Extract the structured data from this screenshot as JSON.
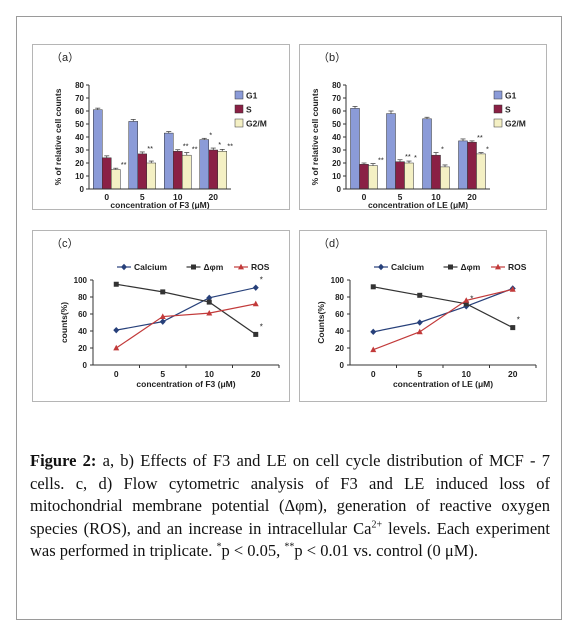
{
  "figure": {
    "caption": {
      "label": "Figure 2:",
      "part1": " a, b) Effects of F3 and LE on cell cycle distribution of MCF - 7 cells. c, d) Flow cytometric analysis of F3 and LE induced loss of mitochondrial membrane potential (Δφm), generation of reactive oxygen species (ROS), and an increase in intracellular Ca",
      "ca_sup": "2+",
      "part2": " levels. Each experiment was performed in triplicate. ",
      "p1_sup": "*",
      "part3": "p < 0.05, ",
      "p2_sup": "**",
      "part4": "p < 0.01 vs. control (0 μM)."
    }
  },
  "chart_data": [
    {
      "id": "a",
      "panel_label": "（a）",
      "type": "bar",
      "categories": [
        "0",
        "5",
        "10",
        "20"
      ],
      "xlabel": "concentration of F3 (μM)",
      "ylabel": "% of relative cell counts",
      "ylim": [
        0,
        80
      ],
      "yticks": [
        "0",
        "10",
        "20",
        "30",
        "40",
        "50",
        "60",
        "70",
        "80"
      ],
      "legend_position": "top-right",
      "series": [
        {
          "name": "G1",
          "color": "#8b9bd8",
          "values": [
            61,
            52,
            43,
            38
          ],
          "errors": [
            1.2,
            1.5,
            1.2,
            1
          ],
          "marks": [
            "",
            "",
            "",
            "*"
          ]
        },
        {
          "name": "S",
          "color": "#8a2045",
          "values": [
            24,
            27,
            29,
            30
          ],
          "errors": [
            1.5,
            1.5,
            1.2,
            1.5
          ],
          "marks": [
            "",
            "**",
            "**",
            "*"
          ]
        },
        {
          "name": "G2/M",
          "color": "#f4f0c4",
          "values": [
            15,
            20,
            26,
            29
          ],
          "errors": [
            1,
            1.5,
            2,
            1.5
          ],
          "marks": [
            "**",
            "",
            "**",
            "**"
          ]
        }
      ]
    },
    {
      "id": "b",
      "panel_label": "（b）",
      "type": "bar",
      "categories": [
        "0",
        "5",
        "10",
        "20"
      ],
      "xlabel": "concentration of LE (μM)",
      "ylabel": "% of relative cell counts",
      "ylim": [
        0,
        80
      ],
      "yticks": [
        "0",
        "10",
        "20",
        "30",
        "40",
        "50",
        "60",
        "70",
        "80"
      ],
      "legend_position": "top-right",
      "series": [
        {
          "name": "G1",
          "color": "#8b9bd8",
          "values": [
            62,
            58,
            54,
            37
          ],
          "errors": [
            1.5,
            2,
            1.2,
            1.5
          ],
          "marks": [
            "",
            "",
            "",
            ""
          ]
        },
        {
          "name": "S",
          "color": "#8a2045",
          "values": [
            19,
            21,
            26,
            36
          ],
          "errors": [
            1,
            1.5,
            2,
            1
          ],
          "marks": [
            "",
            "**",
            "*",
            "**"
          ]
        },
        {
          "name": "G2/M",
          "color": "#f4f0c4",
          "values": [
            18,
            20,
            17,
            27
          ],
          "errors": [
            1.5,
            1.5,
            1.5,
            1
          ],
          "marks": [
            "**",
            "*",
            "",
            "*"
          ]
        }
      ]
    },
    {
      "id": "c",
      "panel_label": "（c）",
      "type": "line",
      "x": [
        "0",
        "5",
        "10",
        "20"
      ],
      "xlabel": "concentration of F3 (μM)",
      "ylabel": "counts(%)",
      "ylim": [
        0,
        100
      ],
      "yticks": [
        "0",
        "20",
        "40",
        "60",
        "80",
        "100"
      ],
      "legend_position": "top",
      "series": [
        {
          "name": "Calcium",
          "color": "#27407a",
          "marker": "diamond",
          "values": [
            41,
            51,
            79,
            91
          ],
          "marks": [
            "",
            "",
            "",
            "*"
          ]
        },
        {
          "name": "Δφm",
          "color": "#333333",
          "marker": "square",
          "values": [
            95,
            86,
            74,
            36
          ],
          "marks": [
            "",
            "",
            "",
            "*"
          ]
        },
        {
          "name": "ROS",
          "color": "#c23a3a",
          "marker": "triangle",
          "values": [
            20,
            57,
            61,
            72
          ],
          "marks": [
            "",
            "",
            "",
            ""
          ]
        }
      ]
    },
    {
      "id": "d",
      "panel_label": "（d）",
      "type": "line",
      "x": [
        "0",
        "5",
        "10",
        "20"
      ],
      "xlabel": "concentration of LE (μM)",
      "ylabel": "Counts(%)",
      "ylim": [
        0,
        100
      ],
      "yticks": [
        "0",
        "20",
        "40",
        "60",
        "80",
        "100"
      ],
      "legend_position": "top",
      "series": [
        {
          "name": "Calcium",
          "color": "#27407a",
          "marker": "diamond",
          "values": [
            39,
            50,
            69,
            90
          ],
          "marks": [
            "",
            "",
            "*",
            ""
          ]
        },
        {
          "name": "Δφm",
          "color": "#333333",
          "marker": "square",
          "values": [
            92,
            82,
            72,
            44
          ],
          "marks": [
            "",
            "",
            "",
            "*"
          ]
        },
        {
          "name": "ROS",
          "color": "#c23a3a",
          "marker": "triangle",
          "values": [
            18,
            39,
            76,
            89
          ],
          "marks": [
            "",
            "",
            "",
            ""
          ]
        }
      ]
    }
  ]
}
